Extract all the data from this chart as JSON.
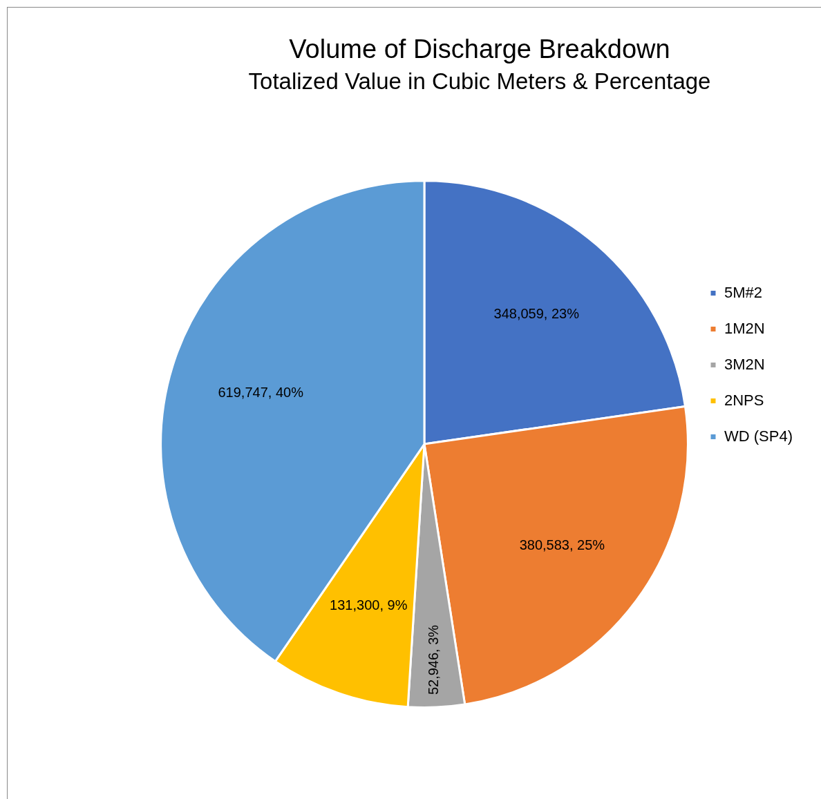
{
  "chart_data": {
    "type": "pie",
    "title": "Volume of Discharge Breakdown",
    "subtitle": "Totalized Value in Cubic Meters & Percentage",
    "categories": [
      "5M#2",
      "1M2N",
      "3M2N",
      "2NPS",
      "WD (SP4)"
    ],
    "values": [
      348059,
      380583,
      52946,
      131300,
      619747
    ],
    "colors": [
      "#4472c4",
      "#ed7d31",
      "#a5a5a5",
      "#ffc000",
      "#5b9bd5"
    ],
    "value_labels": [
      "348,059, 23%",
      "380,583, 25%",
      "52,946, 3%",
      "131,300, 9%",
      "619,747, 40%"
    ],
    "legend": "right"
  }
}
